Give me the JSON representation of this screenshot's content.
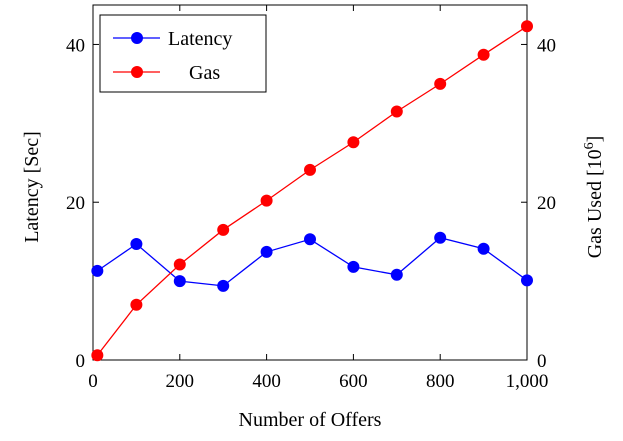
{
  "chart_data": {
    "type": "line",
    "title": "",
    "xlabel": "Number of Offers",
    "ylabel_left": "Latency [Sec]",
    "ylabel_right_base": "Gas Used [10",
    "ylabel_right_exp": "6",
    "ylabel_right_close": "]",
    "xlim": [
      0,
      1000
    ],
    "ylim_left": [
      0,
      45
    ],
    "ylim_right": [
      0,
      45
    ],
    "x_ticks": [
      0,
      200,
      400,
      600,
      800,
      1000
    ],
    "x_tick_labels": [
      "0",
      "200",
      "400",
      "600",
      "800",
      "1,000"
    ],
    "y_ticks_left": [
      0,
      20,
      40
    ],
    "y_tick_labels_left": [
      "0",
      "20",
      "40"
    ],
    "y_ticks_right": [
      0,
      20,
      40
    ],
    "y_tick_labels_right": [
      "0",
      "20",
      "40"
    ],
    "grid": false,
    "legend_position": "top-left",
    "x": [
      10,
      100,
      200,
      300,
      400,
      500,
      600,
      700,
      800,
      900,
      1000
    ],
    "series": [
      {
        "name": "Latency",
        "axis": "left",
        "color": "#0000ff",
        "values": [
          11.3,
          14.7,
          10.0,
          9.4,
          13.7,
          15.3,
          11.8,
          10.8,
          15.5,
          14.1,
          10.1
        ]
      },
      {
        "name": "Gas",
        "axis": "right",
        "color": "#ff0000",
        "values": [
          0.6,
          7.0,
          12.1,
          16.5,
          20.2,
          24.1,
          27.6,
          31.5,
          35.0,
          38.7,
          42.3
        ]
      }
    ]
  }
}
